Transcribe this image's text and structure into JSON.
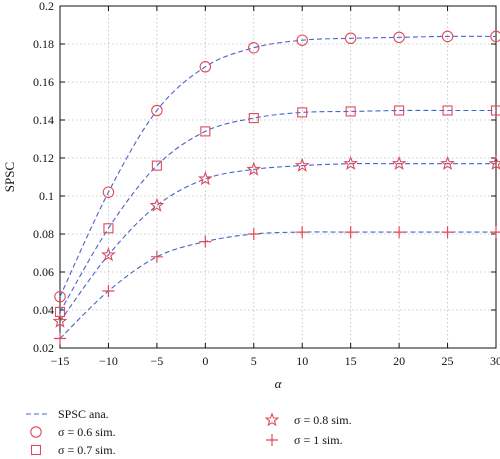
{
  "chart_data": {
    "type": "line",
    "title": "",
    "xlabel": "α",
    "ylabel": "SPSC",
    "xlim": [
      -15,
      30
    ],
    "ylim": [
      0.02,
      0.2
    ],
    "x_ticks": [
      "−15",
      "−10",
      "−5",
      "0",
      "5",
      "10",
      "15",
      "20",
      "25",
      "30"
    ],
    "y_ticks": [
      "0.02",
      "0.04",
      "0.06",
      "0.08",
      "0.1",
      "0.12",
      "0.14",
      "0.16",
      "0.18",
      "0.2"
    ],
    "grid": true,
    "x": [
      -15,
      -10,
      -5,
      0,
      5,
      10,
      15,
      20,
      25,
      30
    ],
    "series": [
      {
        "name": "σ = 0.6 sim.",
        "marker": "circle",
        "values": [
          0.047,
          0.102,
          0.145,
          0.168,
          0.178,
          0.182,
          0.183,
          0.1835,
          0.184,
          0.184
        ]
      },
      {
        "name": "σ = 0.7 sim.",
        "marker": "square",
        "values": [
          0.039,
          0.083,
          0.116,
          0.134,
          0.141,
          0.144,
          0.1445,
          0.145,
          0.145,
          0.145
        ]
      },
      {
        "name": "σ = 0.8 sim.",
        "marker": "star",
        "values": [
          0.034,
          0.069,
          0.095,
          0.109,
          0.114,
          0.116,
          0.117,
          0.117,
          0.117,
          0.117
        ]
      },
      {
        "name": "σ = 1 sim.",
        "marker": "plus",
        "values": [
          0.025,
          0.05,
          0.068,
          0.076,
          0.08,
          0.081,
          0.081,
          0.081,
          0.081,
          0.081
        ]
      }
    ],
    "analytic_line": {
      "name": "SPSC ana.",
      "style": "dashed"
    },
    "legend": {
      "placement": "bottom",
      "entries": [
        {
          "label": "SPSC ana.",
          "symbol": "dashed-line"
        },
        {
          "label": "σ = 0.6 sim.",
          "symbol": "circle"
        },
        {
          "label": "σ = 0.7 sim.",
          "symbol": "square"
        },
        {
          "label": "σ = 0.8 sim.",
          "symbol": "star"
        },
        {
          "label": "σ = 1 sim.",
          "symbol": "plus"
        }
      ]
    },
    "colors": {
      "line": "#4a63c9",
      "marker": "#e04a5a",
      "grid": "#bdbdbd",
      "axis": "#111111"
    }
  }
}
